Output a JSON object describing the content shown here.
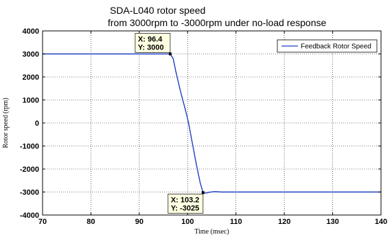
{
  "chart_data": {
    "type": "line",
    "title_line1": "SDA-L040 rotor speed",
    "title_line2": "from 3000rpm to -3000rpm under no-load response",
    "xlabel": "Time (msec)",
    "ylabel": "Rotor speed (rpm)",
    "xlim": [
      70,
      140
    ],
    "ylim": [
      -4000,
      4000
    ],
    "xticks": [
      70,
      80,
      90,
      100,
      110,
      120,
      130,
      140
    ],
    "yticks": [
      -4000,
      -3000,
      -2000,
      -1000,
      0,
      1000,
      2000,
      3000,
      4000
    ],
    "xtick_labels": [
      "70",
      "80",
      "90",
      "100",
      "110",
      "120",
      "130",
      "140"
    ],
    "ytick_labels": [
      "-4000",
      "-3000",
      "-2000",
      "-1000",
      "0",
      "1000",
      "2000",
      "3000",
      "4000"
    ],
    "grid": true,
    "legend_position": "top-right",
    "series": [
      {
        "name": "Feedback Rotor Speed",
        "color": "#1f3fbf",
        "x": [
          70,
          96.4,
          97.0,
          97.6,
          98.5,
          99.5,
          100.2,
          101.0,
          101.8,
          102.6,
          103.2,
          103.8,
          104.5,
          105.5,
          107,
          110,
          140
        ],
        "y": [
          3000,
          3000,
          2800,
          2200,
          1400,
          600,
          0,
          -900,
          -1800,
          -2600,
          -3025,
          -3050,
          -3010,
          -2985,
          -3000,
          -3000,
          -3000
        ]
      }
    ],
    "datatips": [
      {
        "x_label": "X: 96.4",
        "y_label": "Y: 3000",
        "x": 96.4,
        "y": 3000,
        "side": "above"
      },
      {
        "x_label": "X: 103.2",
        "y_label": "Y: -3025",
        "x": 103.2,
        "y": -3025,
        "side": "below"
      }
    ]
  }
}
